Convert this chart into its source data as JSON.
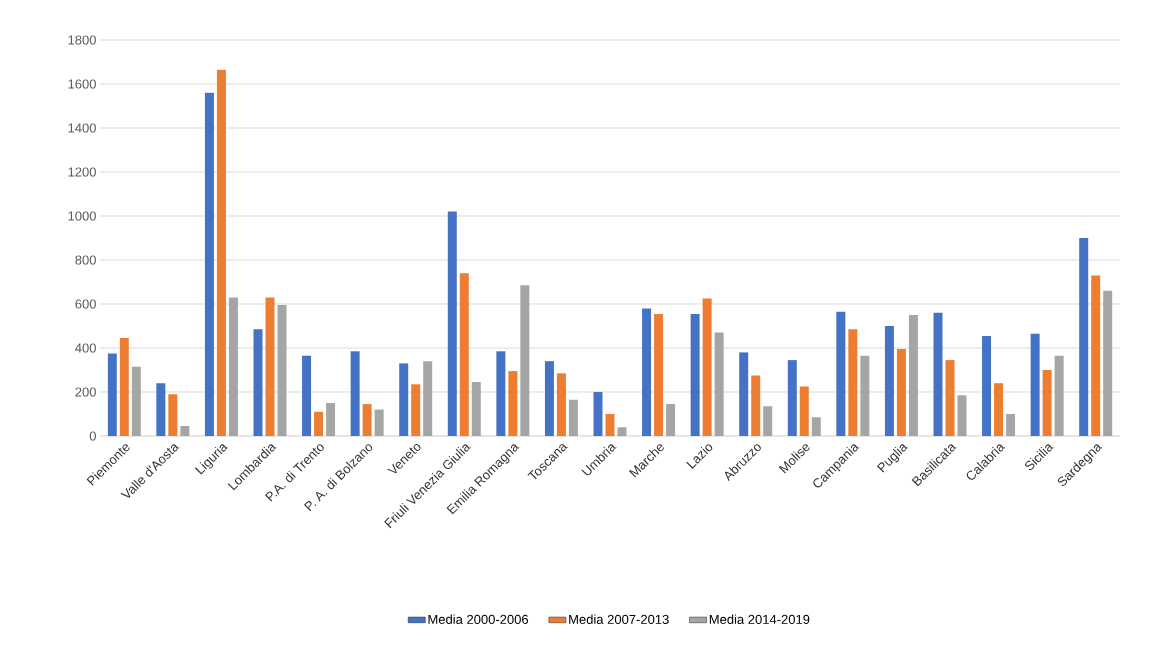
{
  "chart_data": {
    "type": "bar",
    "categories": [
      "Piemonte",
      "Valle d'Aosta",
      "Liguria",
      "Lombardia",
      "P.A. di Trento",
      "P. A. di Bolzano",
      "Veneto",
      "Friuli Venezia Giulia",
      "Emilia Romagna",
      "Toscana",
      "Umbria",
      "Marche",
      "Lazio",
      "Abruzzo",
      "Molise",
      "Campania",
      "Puglia",
      "Basilicata",
      "Calabria",
      "Sicilia",
      "Sardegna"
    ],
    "series": [
      {
        "name": "Media 2000-2006",
        "color": "#4472c4",
        "values": [
          375,
          240,
          1560,
          485,
          365,
          385,
          330,
          1020,
          385,
          340,
          200,
          580,
          555,
          380,
          345,
          565,
          500,
          560,
          455,
          465,
          900
        ]
      },
      {
        "name": "Media 2007-2013",
        "color": "#ed7d31",
        "values": [
          445,
          190,
          1665,
          630,
          110,
          145,
          235,
          740,
          295,
          285,
          100,
          555,
          625,
          275,
          225,
          485,
          395,
          345,
          240,
          300,
          730
        ]
      },
      {
        "name": "Media 2014-2019",
        "color": "#a5a5a5",
        "values": [
          315,
          45,
          630,
          595,
          150,
          120,
          340,
          245,
          685,
          165,
          40,
          145,
          470,
          135,
          85,
          365,
          550,
          185,
          100,
          365,
          660
        ]
      }
    ],
    "ylim": [
      0,
      1800
    ],
    "yticks": [
      0,
      200,
      400,
      600,
      800,
      1000,
      1200,
      1400,
      1600,
      1800
    ],
    "grid": "y",
    "legend": "bottom"
  }
}
